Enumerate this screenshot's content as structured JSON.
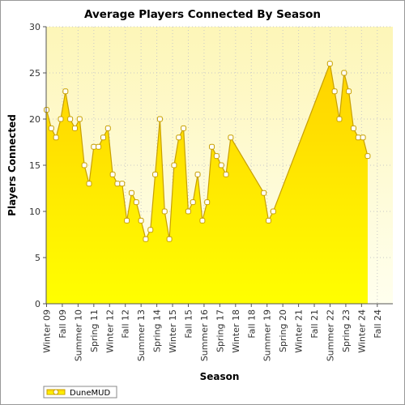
{
  "chart_data": {
    "type": "area",
    "title": "Average Players Connected By Season",
    "xlabel": "Season",
    "ylabel": "Players Connected",
    "ylim": [
      0,
      30
    ],
    "yticks": [
      0,
      5,
      10,
      15,
      20,
      25,
      30
    ],
    "grid": true,
    "legend_position": "bottom-left",
    "colors": {
      "fill_top": "#ffd200",
      "fill_bottom": "#ffff00",
      "line": "#c8a000",
      "plot_bg_top": "#fdf6b8",
      "plot_bg_bottom": "#ffffee",
      "grid": "#c8c8c8"
    },
    "x_tick_labels": [
      "Winter 09",
      "Fall 09",
      "Summer 10",
      "Spring 11",
      "Winter 12",
      "Fall 12",
      "Summer 13",
      "Spring 14",
      "Winter 15",
      "Fall 15",
      "Summer 16",
      "Spring 17",
      "Winter 18",
      "Fall 18",
      "Summer 19",
      "Spring 20",
      "Winter 21",
      "Fall 21",
      "Summer 22",
      "Spring 23",
      "Winter 24",
      "Fall 24"
    ],
    "x_range": [
      0,
      73
    ],
    "series": [
      {
        "name": "DuneMUD",
        "points": [
          [
            0,
            21
          ],
          [
            1,
            19
          ],
          [
            2,
            18
          ],
          [
            3,
            20
          ],
          [
            4,
            23
          ],
          [
            5,
            20
          ],
          [
            6,
            19
          ],
          [
            7,
            20
          ],
          [
            8,
            15
          ],
          [
            9,
            13
          ],
          [
            10,
            17
          ],
          [
            11,
            17
          ],
          [
            12,
            18
          ],
          [
            13,
            19
          ],
          [
            14,
            14
          ],
          [
            15,
            13
          ],
          [
            16,
            13
          ],
          [
            17,
            9
          ],
          [
            18,
            12
          ],
          [
            19,
            11
          ],
          [
            20,
            9
          ],
          [
            21,
            7
          ],
          [
            22,
            8
          ],
          [
            23,
            14
          ],
          [
            24,
            20
          ],
          [
            25,
            10
          ],
          [
            26,
            7
          ],
          [
            27,
            15
          ],
          [
            28,
            18
          ],
          [
            29,
            19
          ],
          [
            30,
            10
          ],
          [
            31,
            11
          ],
          [
            32,
            14
          ],
          [
            33,
            9
          ],
          [
            34,
            11
          ],
          [
            35,
            17
          ],
          [
            36,
            16
          ],
          [
            37,
            15
          ],
          [
            38,
            14
          ],
          [
            39,
            18
          ],
          [
            46,
            12
          ],
          [
            47,
            9
          ],
          [
            48,
            10
          ],
          [
            60,
            26
          ],
          [
            61,
            23
          ],
          [
            62,
            20
          ],
          [
            63,
            25
          ],
          [
            64,
            23
          ],
          [
            65,
            19
          ],
          [
            66,
            18
          ],
          [
            67,
            18
          ],
          [
            68,
            16
          ]
        ]
      }
    ]
  }
}
